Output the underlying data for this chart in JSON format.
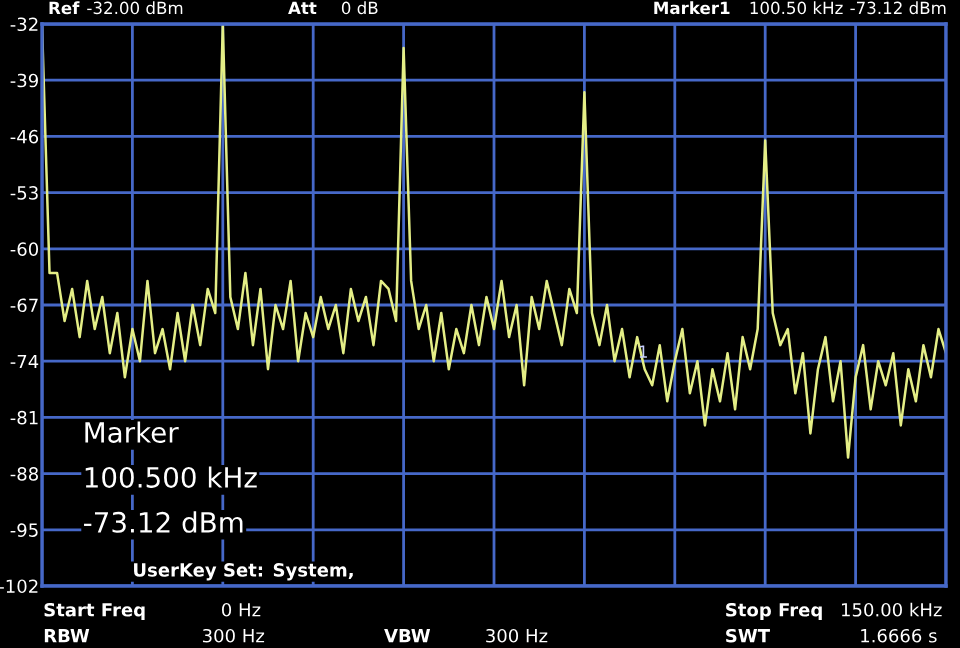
{
  "chart_data": {
    "type": "line",
    "categories": [
      null,
      null,
      null,
      null,
      null,
      null,
      null,
      null,
      null,
      null,
      null,
      null,
      null,
      null,
      null,
      null,
      null,
      null,
      null,
      null,
      null,
      null,
      null,
      null,
      null,
      null,
      null,
      null,
      null,
      null,
      null,
      null,
      null,
      null,
      null,
      null,
      null,
      null,
      null,
      null,
      null,
      null,
      null,
      null,
      null,
      null,
      null,
      null,
      null,
      null,
      null,
      null,
      null,
      null,
      null,
      null,
      null,
      null,
      null,
      null,
      null,
      null,
      null,
      null,
      null,
      null,
      null,
      null,
      null,
      null,
      null,
      null,
      null,
      null,
      null,
      null,
      null,
      null,
      null,
      null,
      null,
      null,
      null,
      null,
      null,
      null,
      null,
      null,
      null,
      null,
      null,
      null,
      null,
      null,
      null,
      null,
      null,
      null,
      null,
      null,
      null,
      null,
      null,
      null,
      null,
      null,
      null,
      null,
      null,
      null,
      null,
      null,
      null,
      null,
      null,
      null,
      null,
      null,
      null,
      null,
      null
    ],
    "series": [
      {
        "color": "#e4ee86",
        "values": [
          -32,
          -63,
          -63,
          -69,
          -65,
          -71,
          -64,
          -70,
          -66,
          -73,
          -68,
          -76,
          -70,
          -74,
          -64,
          -73,
          -70,
          -75,
          -68,
          -74,
          -67,
          -72,
          -65,
          -68,
          -32,
          -66,
          -70,
          -63,
          -72,
          -65,
          -75,
          -67,
          -70,
          -64,
          -74,
          -68,
          -71,
          -66,
          -70,
          -67,
          -73,
          -65,
          -69,
          -66,
          -72,
          -64,
          -65,
          -69,
          -35,
          -64,
          -70,
          -67,
          -74,
          -68,
          -75,
          -70,
          -73,
          -67,
          -72,
          -66,
          -70,
          -64,
          -71,
          -67,
          -77,
          -66,
          -70,
          -64,
          -68,
          -72,
          -65,
          -68,
          -40.5,
          -68,
          -72,
          -67,
          -74,
          -70,
          -76,
          -71,
          -75,
          -77,
          -72,
          -79,
          -74,
          -70,
          -78,
          -74,
          -82,
          -75,
          -79,
          -73,
          -80,
          -71,
          -75,
          -70,
          -46.5,
          -68,
          -72,
          -70,
          -78,
          -73,
          -83,
          -75,
          -71,
          -79,
          -74,
          -86,
          -76,
          -72,
          -80,
          -74,
          -77,
          -73,
          -82,
          -75,
          -79,
          -72,
          -76,
          -70,
          -73
        ]
      }
    ],
    "ylim": [
      -102,
      -32
    ],
    "yticks": [
      -32,
      -39,
      -46,
      -53,
      -60,
      -67,
      -74,
      -81,
      -88,
      -95,
      -102
    ],
    "tick_labels": "y",
    "grid": true,
    "marker": "none",
    "line_style": "solid",
    "annotations": [
      "Ref",
      "-32.00 dBm",
      "Att",
      "0 dB",
      "Marker1",
      "100.50 kHz",
      "-73.12 dBm",
      "Marker",
      "100.500 kHz",
      "-73.12 dBm",
      "UserKey Set:",
      "System,",
      "Start Freq",
      "0 Hz",
      "RBW",
      "300 Hz",
      "VBW",
      "300 Hz",
      "Stop Freq",
      "150.00 kHz",
      "SWT",
      "1.6666 s",
      "1"
    ]
  }
}
